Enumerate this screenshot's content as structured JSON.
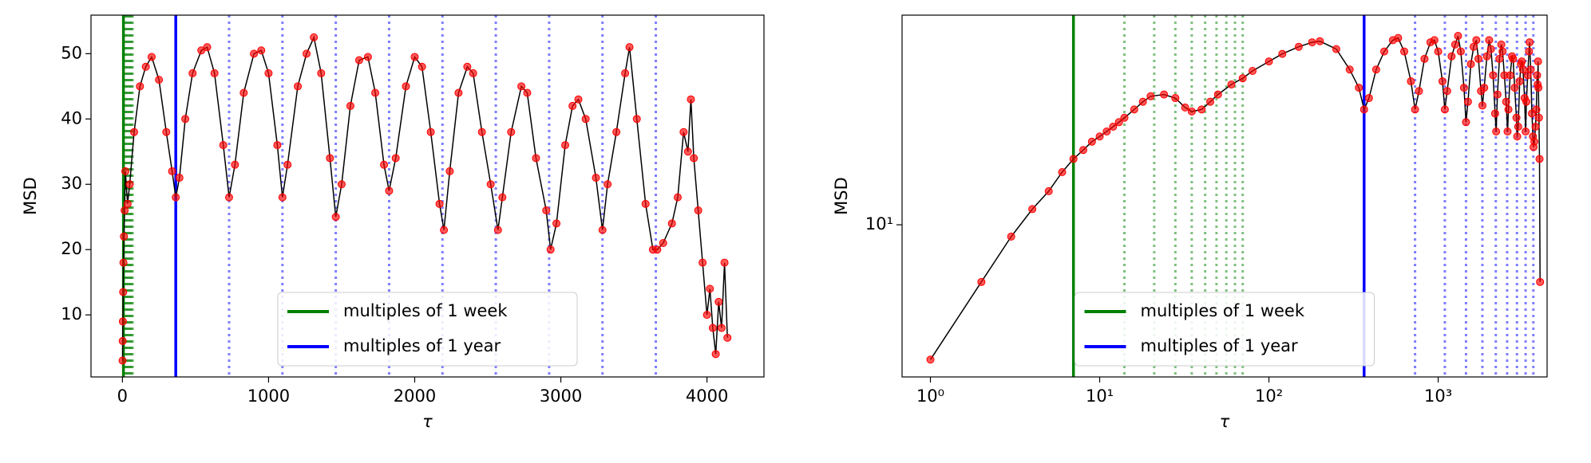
{
  "chart_data": [
    {
      "type": "line",
      "xlabel": "τ",
      "ylabel": "MSD",
      "xscale": "linear",
      "yscale": "linear",
      "xlim": [
        -215,
        4390
      ],
      "ylim": [
        0.5,
        55.9
      ],
      "xticks": [
        0,
        1000,
        2000,
        3000,
        4000
      ],
      "yticks": [
        10,
        20,
        30,
        40,
        50
      ],
      "legend": "lower center",
      "x": [
        1,
        2,
        3,
        5,
        7,
        10,
        15,
        20,
        35,
        50,
        80,
        120,
        160,
        200,
        250,
        300,
        340,
        365,
        390,
        430,
        480,
        540,
        580,
        630,
        690,
        730,
        770,
        830,
        900,
        950,
        1000,
        1060,
        1095,
        1130,
        1200,
        1260,
        1310,
        1360,
        1420,
        1460,
        1500,
        1560,
        1620,
        1680,
        1730,
        1790,
        1825,
        1870,
        1940,
        2000,
        2050,
        2110,
        2170,
        2200,
        2240,
        2300,
        2360,
        2400,
        2460,
        2520,
        2570,
        2600,
        2660,
        2730,
        2770,
        2830,
        2900,
        2930,
        2970,
        3030,
        3080,
        3120,
        3170,
        3240,
        3285,
        3320,
        3380,
        3440,
        3470,
        3520,
        3580,
        3630,
        3660,
        3700,
        3760,
        3800,
        3840,
        3870,
        3890,
        3910,
        3940,
        3970,
        4000,
        4020,
        4040,
        4060,
        4080,
        4100,
        4120,
        4140
      ],
      "series": [
        {
          "color": "#ff0000",
          "values": [
            3,
            6,
            9,
            13.5,
            18,
            22,
            26,
            32,
            27,
            30,
            38,
            45,
            48,
            49.5,
            46,
            38,
            32,
            28,
            31,
            40,
            47,
            50.5,
            51,
            47,
            36,
            28,
            33,
            44,
            50,
            50.5,
            47,
            36,
            28,
            33,
            45,
            50,
            52.5,
            47,
            34,
            25,
            30,
            42,
            49,
            49.5,
            44,
            33,
            29,
            34,
            45,
            49.5,
            48,
            38,
            27,
            23,
            32,
            44,
            48,
            47,
            38,
            30,
            23,
            28,
            38,
            45,
            44,
            34,
            26,
            20,
            24,
            36,
            42,
            43,
            40,
            31,
            23,
            30,
            38,
            47,
            51,
            40,
            27,
            20,
            20,
            21,
            24,
            28,
            38,
            35,
            43,
            34,
            26,
            18,
            10,
            14,
            8,
            4,
            12,
            8,
            18,
            6.5
          ]
        }
      ],
      "references": [
        {
          "name": "multiples of 1 week",
          "color": "#008000",
          "values": [
            7,
            14,
            21,
            28,
            35,
            42,
            49,
            56,
            63,
            70
          ]
        },
        {
          "name": "multiples of 1 year",
          "color": "#0000ff",
          "values": [
            365,
            730,
            1095,
            1460,
            1825,
            2190,
            2555,
            2920,
            3285,
            3650
          ]
        }
      ]
    },
    {
      "type": "line",
      "xlabel": "τ",
      "ylabel": "MSD",
      "xscale": "log",
      "yscale": "log",
      "xlim": [
        0.68,
        4400
      ],
      "ylim": [
        2.57,
        65
      ],
      "xticks": [
        {
          "value": 1,
          "label": "10⁰"
        },
        {
          "value": 10,
          "label": "10¹"
        },
        {
          "value": 100,
          "label": "10²"
        },
        {
          "value": 1000,
          "label": "10³"
        }
      ],
      "yticks": [
        {
          "value": 10,
          "label": "10¹"
        }
      ],
      "legend": "lower center",
      "x": [
        1,
        2,
        3,
        4,
        5,
        6,
        7,
        8,
        9,
        10,
        11,
        12,
        13,
        14,
        16,
        18,
        20,
        24,
        28,
        32,
        35,
        40,
        45,
        50,
        60,
        70,
        80,
        100,
        120,
        150,
        180,
        200,
        250,
        300,
        340,
        365,
        390,
        430,
        480,
        540,
        580,
        630,
        690,
        730,
        770,
        830,
        900,
        950,
        1000,
        1060,
        1095,
        1130,
        1200,
        1260,
        1310,
        1360,
        1420,
        1460,
        1500,
        1560,
        1620,
        1680,
        1730,
        1790,
        1825,
        1870,
        1940,
        2000,
        2050,
        2110,
        2170,
        2200,
        2240,
        2300,
        2360,
        2400,
        2460,
        2520,
        2570,
        2600,
        2660,
        2730,
        2770,
        2830,
        2900,
        2930,
        2970,
        3030,
        3080,
        3120,
        3170,
        3240,
        3285,
        3320,
        3380,
        3440,
        3470,
        3520,
        3580,
        3630,
        3660,
        3700,
        3760,
        3800,
        3840,
        3870,
        3890,
        3910,
        3940,
        3970,
        4000
      ],
      "series": [
        {
          "color": "#ff0000",
          "values": [
            3,
            6,
            9,
            11.5,
            13.5,
            16,
            18,
            19.5,
            21,
            22,
            23,
            24,
            25,
            26,
            28,
            30,
            31.5,
            32,
            31,
            28.5,
            27.5,
            28,
            30,
            32,
            35,
            37,
            39.5,
            43,
            46,
            49,
            51,
            51.5,
            48,
            40,
            34,
            28,
            31,
            40,
            47,
            52,
            53,
            47,
            36,
            28,
            33,
            44,
            51,
            52,
            47,
            36,
            28,
            33,
            45,
            50,
            54,
            47,
            34,
            25,
            30,
            42,
            49,
            52,
            44,
            33,
            29,
            34,
            45,
            52,
            48,
            38,
            27,
            23,
            32,
            44,
            50,
            47,
            38,
            30,
            23,
            28,
            38,
            45,
            44,
            34,
            26,
            22,
            24,
            36,
            42,
            43,
            40,
            31,
            23,
            30,
            38,
            47,
            51,
            40,
            27,
            22,
            20,
            21,
            24,
            28,
            38,
            35,
            43,
            34,
            26,
            18,
            6
          ]
        }
      ],
      "references": [
        {
          "name": "multiples of 1 week",
          "color": "#008000",
          "values": [
            7,
            14,
            21,
            28,
            35,
            42,
            49,
            56,
            63,
            70
          ]
        },
        {
          "name": "multiples of 1 year",
          "color": "#0000ff",
          "values": [
            365,
            730,
            1095,
            1460,
            1825,
            2190,
            2555,
            2920,
            3285,
            3650
          ]
        }
      ]
    }
  ]
}
